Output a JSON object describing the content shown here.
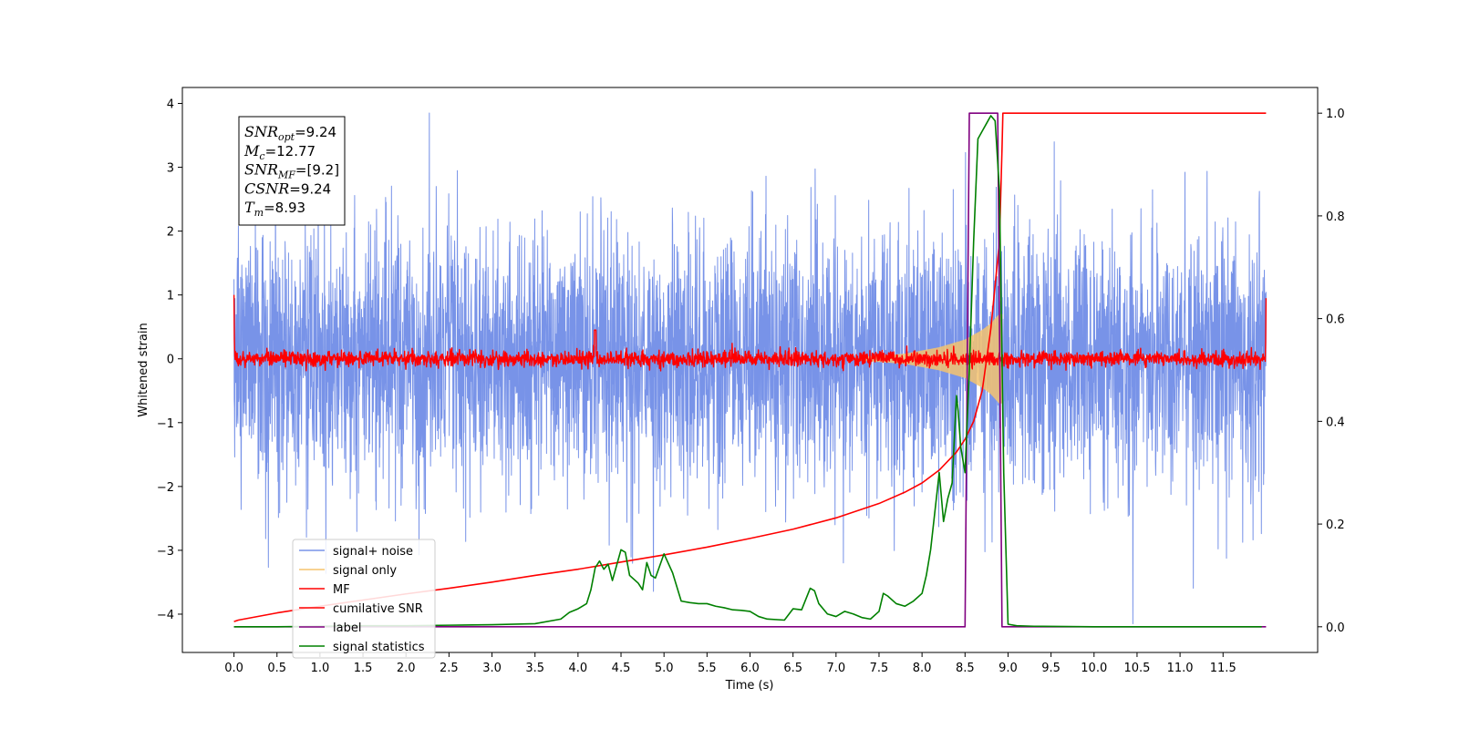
{
  "chart_data": {
    "type": "line",
    "title": "",
    "xlabel": "Time (s)",
    "ylabel": "Whitened strain",
    "ylabel_right": "",
    "xlim": [
      -0.6,
      12.6
    ],
    "ylim": [
      -4.6,
      4.25
    ],
    "ylim_right": [
      -0.05,
      1.05
    ],
    "grid": false,
    "legend_position": "lower-left",
    "x_ticks": [
      "0.0",
      "0.5",
      "1.0",
      "1.5",
      "2.0",
      "2.5",
      "3.0",
      "3.5",
      "4.0",
      "4.5",
      "5.0",
      "5.5",
      "6.0",
      "6.5",
      "7.0",
      "7.5",
      "8.0",
      "8.5",
      "9.0",
      "9.5",
      "10.0",
      "10.5",
      "11.0",
      "11.5"
    ],
    "y_ticks": [
      "4",
      "3",
      "2",
      "1",
      "0",
      "−1",
      "−2",
      "−3",
      "−4"
    ],
    "y_ticks_right": [
      "1.0",
      "0.8",
      "0.6",
      "0.4",
      "0.2",
      "0.0"
    ],
    "annotation": {
      "lines": [
        {
          "var": "SNR",
          "sub": "opt",
          "value": "=9.24"
        },
        {
          "var": "M",
          "sub": "c",
          "value": "=12.77"
        },
        {
          "var": "SNR",
          "sub": "MF",
          "value": "=[9.2]"
        },
        {
          "var": "CSNR",
          "sub": "",
          "value": "=9.24"
        },
        {
          "var": "T",
          "sub": "m",
          "value": "=8.93"
        }
      ]
    },
    "series": [
      {
        "name": "signal+ noise",
        "color": "#7893e8",
        "axis": "left",
        "kind": "noise",
        "x_range": [
          0,
          12
        ],
        "amplitude_sigma": 1.0,
        "y_peak_max": 3.85,
        "y_peak_min": -4.15
      },
      {
        "name": "signal only",
        "color": "#f5c36f",
        "axis": "left",
        "kind": "chirp",
        "x_range": [
          7.3,
          8.93
        ],
        "envelope": [
          [
            7.3,
            0.03
          ],
          [
            7.8,
            0.08
          ],
          [
            8.2,
            0.18
          ],
          [
            8.5,
            0.3
          ],
          [
            8.7,
            0.45
          ],
          [
            8.8,
            0.55
          ],
          [
            8.9,
            0.7
          ],
          [
            8.93,
            0.7
          ]
        ]
      },
      {
        "name": "MF",
        "color": "#ff0000",
        "axis": "left",
        "kind": "mf",
        "x_range": [
          0,
          12
        ],
        "amplitude_sigma": 0.06,
        "edge_values": [
          [
            0,
            1.0
          ],
          [
            12,
            0.95
          ]
        ]
      },
      {
        "name": "cumilative SNR",
        "color": "#ff0000",
        "axis": "right",
        "x": [
          0.0,
          0.05,
          0.5,
          1.0,
          1.5,
          2.0,
          2.5,
          3.0,
          3.5,
          4.0,
          4.5,
          5.0,
          5.5,
          6.0,
          6.5,
          7.0,
          7.5,
          7.8,
          8.0,
          8.2,
          8.4,
          8.5,
          8.6,
          8.7,
          8.8,
          8.9,
          8.93,
          8.94,
          12.0
        ],
        "y": [
          0.01,
          0.013,
          0.027,
          0.04,
          0.052,
          0.064,
          0.075,
          0.087,
          0.1,
          0.112,
          0.126,
          0.14,
          0.155,
          0.172,
          0.19,
          0.212,
          0.24,
          0.262,
          0.28,
          0.305,
          0.34,
          0.365,
          0.4,
          0.46,
          0.58,
          0.75,
          0.93,
          1.0,
          1.0
        ]
      },
      {
        "name": "label",
        "color": "#800080",
        "axis": "right",
        "x": [
          0.0,
          8.5,
          8.55,
          8.88,
          8.93,
          12.0
        ],
        "y": [
          0.0,
          0.0,
          1.0,
          1.0,
          0.0,
          0.0
        ]
      },
      {
        "name": "signal statistics",
        "color": "#008000",
        "axis": "right",
        "x": [
          0.0,
          0.5,
          1.0,
          1.5,
          2.0,
          2.5,
          3.0,
          3.5,
          3.8,
          3.9,
          4.0,
          4.1,
          4.15,
          4.2,
          4.25,
          4.3,
          4.35,
          4.4,
          4.5,
          4.55,
          4.6,
          4.7,
          4.75,
          4.8,
          4.85,
          4.9,
          5.0,
          5.1,
          5.2,
          5.3,
          5.4,
          5.5,
          5.6,
          5.7,
          5.8,
          5.9,
          6.0,
          6.1,
          6.2,
          6.4,
          6.5,
          6.6,
          6.7,
          6.75,
          6.8,
          6.9,
          7.0,
          7.1,
          7.2,
          7.3,
          7.4,
          7.5,
          7.55,
          7.6,
          7.7,
          7.8,
          7.9,
          8.0,
          8.05,
          8.1,
          8.2,
          8.25,
          8.3,
          8.35,
          8.4,
          8.42,
          8.45,
          8.5,
          8.55,
          8.6,
          8.65,
          8.7,
          8.75,
          8.8,
          8.85,
          8.9,
          8.95,
          9.0,
          9.1,
          9.3,
          10.0,
          11.0,
          11.95
        ],
        "y": [
          0.0,
          0.0,
          0.001,
          0.002,
          0.002,
          0.003,
          0.004,
          0.006,
          0.015,
          0.028,
          0.035,
          0.045,
          0.072,
          0.115,
          0.128,
          0.112,
          0.122,
          0.09,
          0.15,
          0.145,
          0.1,
          0.085,
          0.072,
          0.125,
          0.1,
          0.095,
          0.142,
          0.105,
          0.05,
          0.047,
          0.045,
          0.045,
          0.04,
          0.037,
          0.033,
          0.032,
          0.03,
          0.02,
          0.015,
          0.013,
          0.035,
          0.033,
          0.075,
          0.07,
          0.045,
          0.025,
          0.02,
          0.03,
          0.025,
          0.018,
          0.015,
          0.03,
          0.065,
          0.06,
          0.045,
          0.04,
          0.05,
          0.065,
          0.1,
          0.15,
          0.3,
          0.205,
          0.25,
          0.28,
          0.45,
          0.42,
          0.35,
          0.3,
          0.5,
          0.75,
          0.95,
          0.965,
          0.98,
          0.995,
          0.985,
          0.85,
          0.3,
          0.005,
          0.002,
          0.001,
          0.0,
          0.0,
          0.0
        ]
      }
    ]
  }
}
